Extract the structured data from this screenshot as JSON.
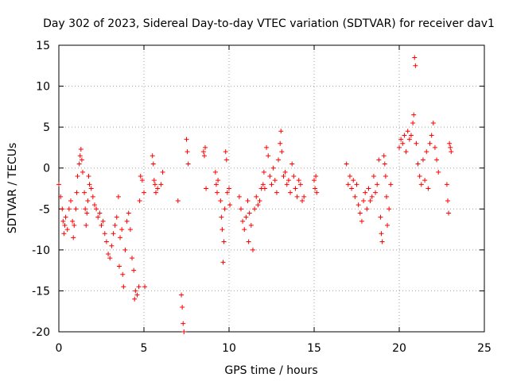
{
  "chart_data": {
    "type": "scatter",
    "title": "Day 302 of 2023, Sidereal Day-to-day VTEC variation (SDTVAR) for receiver dav1",
    "xlabel": "GPS time / hours",
    "ylabel": "SDTVAR / TECUs",
    "xlim": [
      0,
      25
    ],
    "ylim": [
      -20,
      15
    ],
    "xticks": [
      "0",
      "5",
      "10",
      "15",
      "20",
      "25"
    ],
    "yticks": [
      "-20",
      "-15",
      "-10",
      "-5",
      "0",
      "5",
      "10",
      "15"
    ],
    "grid": true,
    "marker": "+",
    "series_color": "#ff0000",
    "series": [
      {
        "name": "SDTVAR",
        "points": [
          [
            0.0,
            -2.0
          ],
          [
            0.1,
            -3.5
          ],
          [
            0.2,
            -5.0
          ],
          [
            0.25,
            -6.5
          ],
          [
            0.3,
            -8.0
          ],
          [
            0.35,
            -7.0
          ],
          [
            0.4,
            -6.0
          ],
          [
            0.5,
            -7.5
          ],
          [
            0.6,
            -5.0
          ],
          [
            0.7,
            -4.0
          ],
          [
            0.8,
            -6.5
          ],
          [
            0.85,
            -8.5
          ],
          [
            0.9,
            -7.0
          ],
          [
            1.0,
            -5.0
          ],
          [
            1.05,
            -3.0
          ],
          [
            1.1,
            -1.0
          ],
          [
            1.2,
            0.5
          ],
          [
            1.25,
            1.5
          ],
          [
            1.3,
            2.3
          ],
          [
            1.35,
            1.0
          ],
          [
            1.4,
            -0.5
          ],
          [
            1.5,
            -3.0
          ],
          [
            1.55,
            -5.0
          ],
          [
            1.6,
            -7.0
          ],
          [
            1.65,
            -5.5
          ],
          [
            1.7,
            -4.0
          ],
          [
            1.75,
            -1.0
          ],
          [
            1.8,
            -2.0
          ],
          [
            1.9,
            -2.5
          ],
          [
            2.0,
            -3.5
          ],
          [
            2.1,
            -4.5
          ],
          [
            2.2,
            -5.0
          ],
          [
            2.3,
            -6.0
          ],
          [
            2.4,
            -5.5
          ],
          [
            2.5,
            -7.0
          ],
          [
            2.6,
            -6.5
          ],
          [
            2.7,
            -8.0
          ],
          [
            2.8,
            -9.0
          ],
          [
            2.9,
            -10.5
          ],
          [
            3.0,
            -11.0
          ],
          [
            3.1,
            -9.5
          ],
          [
            3.2,
            -8.0
          ],
          [
            3.3,
            -7.0
          ],
          [
            3.4,
            -6.0
          ],
          [
            3.5,
            -3.5
          ],
          [
            3.55,
            -12.0
          ],
          [
            3.6,
            -8.5
          ],
          [
            3.7,
            -7.5
          ],
          [
            3.75,
            -13.0
          ],
          [
            3.8,
            -14.5
          ],
          [
            3.9,
            -10.0
          ],
          [
            4.0,
            -6.5
          ],
          [
            4.1,
            -5.5
          ],
          [
            4.2,
            -7.5
          ],
          [
            4.3,
            -11.0
          ],
          [
            4.4,
            -12.5
          ],
          [
            4.45,
            -16.0
          ],
          [
            4.5,
            -15.0
          ],
          [
            4.6,
            -15.5
          ],
          [
            4.7,
            -14.5
          ],
          [
            4.75,
            -4.0
          ],
          [
            4.8,
            -1.0
          ],
          [
            4.9,
            -1.5
          ],
          [
            5.0,
            -3.0
          ],
          [
            5.05,
            -14.5
          ],
          [
            5.5,
            1.5
          ],
          [
            5.55,
            0.5
          ],
          [
            5.6,
            -1.5
          ],
          [
            5.65,
            -2.0
          ],
          [
            5.7,
            -3.0
          ],
          [
            5.8,
            -2.5
          ],
          [
            6.0,
            -2.0
          ],
          [
            6.1,
            -0.5
          ],
          [
            7.0,
            -4.0
          ],
          [
            7.2,
            -15.5
          ],
          [
            7.25,
            -17.0
          ],
          [
            7.3,
            -19.0
          ],
          [
            7.35,
            -20.0
          ],
          [
            7.5,
            3.5
          ],
          [
            7.55,
            2.0
          ],
          [
            7.6,
            0.5
          ],
          [
            8.5,
            2.0
          ],
          [
            8.55,
            1.5
          ],
          [
            8.6,
            2.5
          ],
          [
            8.65,
            -2.5
          ],
          [
            9.2,
            -0.5
          ],
          [
            9.25,
            -2.0
          ],
          [
            9.3,
            -3.0
          ],
          [
            9.35,
            -1.5
          ],
          [
            9.5,
            -4.0
          ],
          [
            9.55,
            -6.0
          ],
          [
            9.6,
            -7.5
          ],
          [
            9.65,
            -11.5
          ],
          [
            9.7,
            -9.0
          ],
          [
            9.75,
            -5.0
          ],
          [
            9.8,
            2.0
          ],
          [
            9.85,
            1.0
          ],
          [
            9.9,
            -3.0
          ],
          [
            10.0,
            -2.5
          ],
          [
            10.05,
            -4.5
          ],
          [
            10.6,
            -3.5
          ],
          [
            10.7,
            -5.0
          ],
          [
            10.8,
            -6.5
          ],
          [
            10.9,
            -7.5
          ],
          [
            11.0,
            -6.0
          ],
          [
            11.1,
            -4.0
          ],
          [
            11.15,
            -9.0
          ],
          [
            11.2,
            -5.5
          ],
          [
            11.3,
            -7.0
          ],
          [
            11.4,
            -10.0
          ],
          [
            11.5,
            -5.0
          ],
          [
            11.6,
            -3.5
          ],
          [
            11.7,
            -4.5
          ],
          [
            11.8,
            -4.0
          ],
          [
            11.9,
            -2.5
          ],
          [
            12.0,
            -2.0
          ],
          [
            12.05,
            -0.5
          ],
          [
            12.1,
            -2.5
          ],
          [
            12.2,
            2.5
          ],
          [
            12.3,
            1.5
          ],
          [
            12.4,
            -1.0
          ],
          [
            12.5,
            -2.0
          ],
          [
            12.6,
            0.0
          ],
          [
            12.7,
            -1.5
          ],
          [
            12.8,
            -3.0
          ],
          [
            12.9,
            1.0
          ],
          [
            13.0,
            3.0
          ],
          [
            13.05,
            4.5
          ],
          [
            13.1,
            2.0
          ],
          [
            13.2,
            -1.0
          ],
          [
            13.3,
            -0.5
          ],
          [
            13.4,
            -2.0
          ],
          [
            13.5,
            -1.5
          ],
          [
            13.6,
            -3.0
          ],
          [
            13.7,
            0.5
          ],
          [
            13.8,
            -1.0
          ],
          [
            13.9,
            -2.5
          ],
          [
            14.0,
            -3.5
          ],
          [
            14.1,
            -1.5
          ],
          [
            14.2,
            -2.0
          ],
          [
            14.3,
            -4.0
          ],
          [
            14.4,
            -3.5
          ],
          [
            15.0,
            -1.5
          ],
          [
            15.05,
            -2.5
          ],
          [
            15.1,
            -1.0
          ],
          [
            15.15,
            -3.0
          ],
          [
            16.9,
            0.5
          ],
          [
            17.0,
            -2.0
          ],
          [
            17.1,
            -1.0
          ],
          [
            17.2,
            -2.5
          ],
          [
            17.3,
            -1.5
          ],
          [
            17.4,
            -3.5
          ],
          [
            17.5,
            -2.0
          ],
          [
            17.6,
            -4.5
          ],
          [
            17.7,
            -5.5
          ],
          [
            17.8,
            -6.5
          ],
          [
            17.9,
            -4.0
          ],
          [
            18.0,
            -3.0
          ],
          [
            18.1,
            -5.0
          ],
          [
            18.2,
            -2.5
          ],
          [
            18.3,
            -4.0
          ],
          [
            18.4,
            -3.5
          ],
          [
            18.5,
            -1.0
          ],
          [
            18.6,
            -3.0
          ],
          [
            18.7,
            -2.0
          ],
          [
            18.8,
            1.0
          ],
          [
            18.9,
            -6.0
          ],
          [
            18.95,
            -8.0
          ],
          [
            19.0,
            -9.0
          ],
          [
            19.1,
            1.5
          ],
          [
            19.15,
            0.5
          ],
          [
            19.2,
            -1.0
          ],
          [
            19.25,
            -3.5
          ],
          [
            19.3,
            -7.0
          ],
          [
            19.4,
            -5.0
          ],
          [
            19.5,
            -2.0
          ],
          [
            20.0,
            2.5
          ],
          [
            20.1,
            3.5
          ],
          [
            20.2,
            3.0
          ],
          [
            20.3,
            4.0
          ],
          [
            20.4,
            2.0
          ],
          [
            20.5,
            4.5
          ],
          [
            20.6,
            3.5
          ],
          [
            20.7,
            4.0
          ],
          [
            20.8,
            5.5
          ],
          [
            20.85,
            6.5
          ],
          [
            20.9,
            13.5
          ],
          [
            20.95,
            12.5
          ],
          [
            21.0,
            3.0
          ],
          [
            21.1,
            0.5
          ],
          [
            21.2,
            -1.0
          ],
          [
            21.3,
            -2.0
          ],
          [
            21.4,
            1.0
          ],
          [
            21.5,
            -1.5
          ],
          [
            21.6,
            2.0
          ],
          [
            21.7,
            -2.5
          ],
          [
            21.8,
            3.0
          ],
          [
            21.9,
            4.0
          ],
          [
            22.0,
            5.5
          ],
          [
            22.1,
            2.5
          ],
          [
            22.2,
            1.0
          ],
          [
            22.3,
            -0.5
          ],
          [
            22.8,
            -2.0
          ],
          [
            22.85,
            -4.0
          ],
          [
            22.9,
            -5.5
          ],
          [
            22.95,
            3.0
          ],
          [
            23.0,
            2.5
          ],
          [
            23.05,
            2.0
          ]
        ]
      }
    ]
  }
}
